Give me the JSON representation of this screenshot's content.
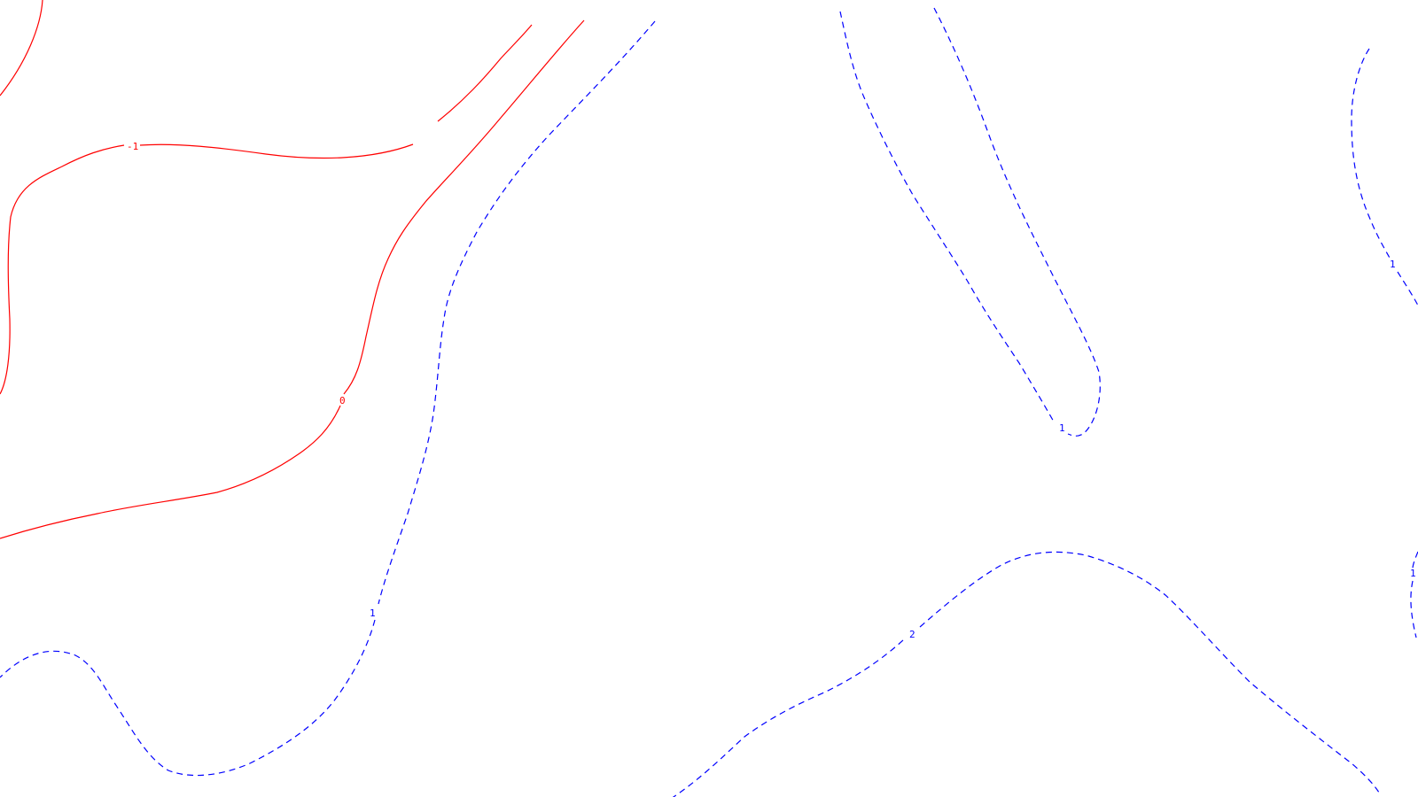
{
  "map": {
    "contour_labels": {
      "neg_one": "-1",
      "zero": "0",
      "one_left": "1",
      "one_mid": "1",
      "one_right_top": "1",
      "one_right_bottom": "1",
      "two": "2"
    },
    "colors": {
      "negative_contour": "#ff0000",
      "positive_contour": "#0000ff",
      "background": "#ffffff"
    },
    "line_styles": {
      "negative": "solid",
      "positive": "dashed"
    }
  }
}
